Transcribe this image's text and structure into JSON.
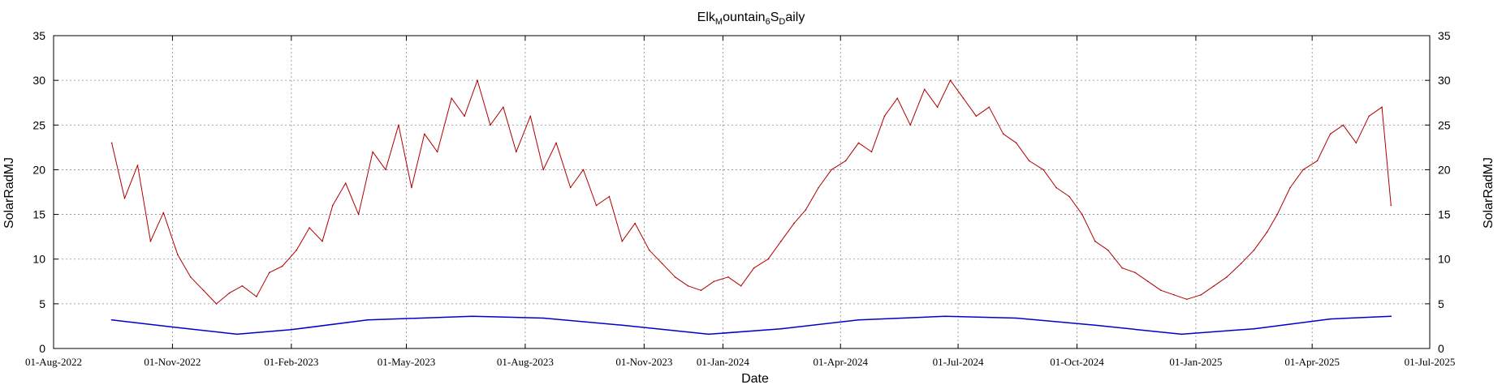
{
  "chart_data": {
    "type": "line",
    "title": {
      "parts": [
        "Elk",
        "M",
        "ountain",
        "6",
        "S",
        "D",
        "aily"
      ]
    },
    "xlabel": "Date",
    "ylabel_left": "SolarRadMJ",
    "ylabel_right": "SolarRadMJ",
    "ylim": [
      0,
      35
    ],
    "yticks": [
      0,
      5,
      10,
      15,
      20,
      25,
      30,
      35
    ],
    "xlim": [
      "2022-08-01",
      "2025-07-01"
    ],
    "xticks": [
      {
        "date": "2022-08-01",
        "label": "01-Aug-2022"
      },
      {
        "date": "2022-11-01",
        "label": "01-Nov-2022"
      },
      {
        "date": "2023-02-01",
        "label": "01-Feb-2023"
      },
      {
        "date": "2023-05-01",
        "label": "01-May-2023"
      },
      {
        "date": "2023-08-01",
        "label": "01-Aug-2023"
      },
      {
        "date": "2023-11-01",
        "label": "01-Nov-2023"
      },
      {
        "date": "2024-01-01",
        "label": "01-Jan-2024"
      },
      {
        "date": "2024-04-01",
        "label": "01-Apr-2024"
      },
      {
        "date": "2024-07-01",
        "label": "01-Jul-2024"
      },
      {
        "date": "2024-10-01",
        "label": "01-Oct-2024"
      },
      {
        "date": "2025-01-01",
        "label": "01-Jan-2025"
      },
      {
        "date": "2025-04-01",
        "label": "01-Apr-2025"
      },
      {
        "date": "2025-07-01",
        "label": "01-Jul-2025"
      }
    ],
    "grid": true,
    "series": [
      {
        "color": "#b00000",
        "x": [
          "2022-09-15",
          "2022-09-25",
          "2022-10-05",
          "2022-10-15",
          "2022-10-25",
          "2022-11-05",
          "2022-11-15",
          "2022-11-25",
          "2022-12-05",
          "2022-12-15",
          "2022-12-25",
          "2023-01-05",
          "2023-01-15",
          "2023-01-25",
          "2023-02-05",
          "2023-02-15",
          "2023-02-25",
          "2023-03-05",
          "2023-03-15",
          "2023-03-25",
          "2023-04-05",
          "2023-04-15",
          "2023-04-25",
          "2023-05-05",
          "2023-05-15",
          "2023-05-25",
          "2023-06-05",
          "2023-06-15",
          "2023-06-25",
          "2023-07-05",
          "2023-07-15",
          "2023-07-25",
          "2023-08-05",
          "2023-08-15",
          "2023-08-25",
          "2023-09-05",
          "2023-09-15",
          "2023-09-25",
          "2023-10-05",
          "2023-10-15",
          "2023-10-25",
          "2023-11-05",
          "2023-11-15",
          "2023-11-25",
          "2023-12-05",
          "2023-12-15",
          "2023-12-25",
          "2024-01-05",
          "2024-01-15",
          "2024-01-25",
          "2024-02-05",
          "2024-02-15",
          "2024-02-25",
          "2024-03-05",
          "2024-03-15",
          "2024-03-25",
          "2024-04-05",
          "2024-04-15",
          "2024-04-25",
          "2024-05-05",
          "2024-05-15",
          "2024-05-25",
          "2024-06-05",
          "2024-06-15",
          "2024-06-25",
          "2024-07-05",
          "2024-07-15",
          "2024-07-25",
          "2024-08-05",
          "2024-08-15",
          "2024-08-25",
          "2024-09-05",
          "2024-09-15",
          "2024-09-25",
          "2024-10-05",
          "2024-10-15",
          "2024-10-25",
          "2024-11-05",
          "2024-11-15",
          "2024-11-25",
          "2024-12-05",
          "2024-12-15",
          "2024-12-25",
          "2025-01-05",
          "2025-01-15",
          "2025-01-25",
          "2025-02-05",
          "2025-02-15",
          "2025-02-25",
          "2025-03-05",
          "2025-03-15",
          "2025-03-25",
          "2025-04-05",
          "2025-04-15",
          "2025-04-25",
          "2025-05-05",
          "2025-05-15",
          "2025-05-25",
          "2025-06-01"
        ],
        "y": [
          23.0,
          16.8,
          20.5,
          12.0,
          15.2,
          10.5,
          8.0,
          6.5,
          5.0,
          6.2,
          7.0,
          5.8,
          8.5,
          9.2,
          11.0,
          13.5,
          12.0,
          16.0,
          18.5,
          15.0,
          22.0,
          20.0,
          25.0,
          18.0,
          24.0,
          22.0,
          28.0,
          26.0,
          30.0,
          25.0,
          27.0,
          22.0,
          26.0,
          20.0,
          23.0,
          18.0,
          20.0,
          16.0,
          17.0,
          12.0,
          14.0,
          11.0,
          9.5,
          8.0,
          7.0,
          6.5,
          7.5,
          8.0,
          7.0,
          9.0,
          10.0,
          12.0,
          14.0,
          15.5,
          18.0,
          20.0,
          21.0,
          23.0,
          22.0,
          26.0,
          28.0,
          25.0,
          29.0,
          27.0,
          30.0,
          28.0,
          26.0,
          27.0,
          24.0,
          23.0,
          21.0,
          20.0,
          18.0,
          17.0,
          15.0,
          12.0,
          11.0,
          9.0,
          8.5,
          7.5,
          6.5,
          6.0,
          5.5,
          6.0,
          7.0,
          8.0,
          9.5,
          11.0,
          13.0,
          15.0,
          18.0,
          20.0,
          21.0,
          24.0,
          25.0,
          23.0,
          26.0,
          27.0,
          16.0
        ]
      },
      {
        "color": "#0000cc",
        "x": [
          "2022-09-15",
          "2022-11-01",
          "2022-12-21",
          "2023-02-01",
          "2023-04-01",
          "2023-06-21",
          "2023-08-15",
          "2023-10-15",
          "2023-12-21",
          "2024-02-15",
          "2024-04-15",
          "2024-06-21",
          "2024-08-15",
          "2024-10-15",
          "2024-12-21",
          "2025-02-15",
          "2025-04-15",
          "2025-06-01"
        ],
        "y": [
          3.2,
          2.4,
          1.6,
          2.1,
          3.2,
          3.6,
          3.4,
          2.6,
          1.6,
          2.2,
          3.2,
          3.6,
          3.4,
          2.6,
          1.6,
          2.2,
          3.3,
          3.6
        ]
      }
    ]
  }
}
